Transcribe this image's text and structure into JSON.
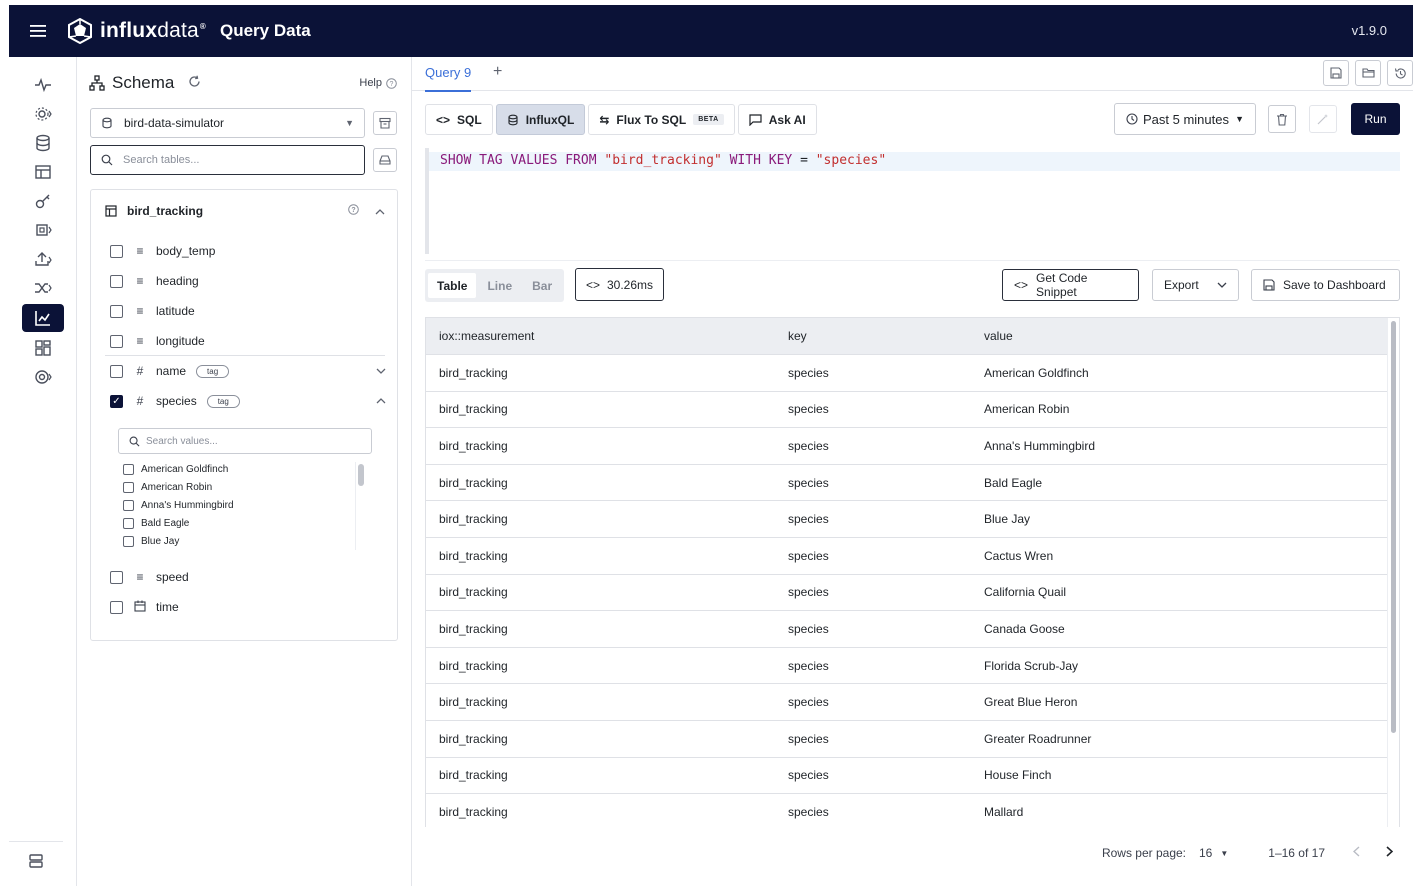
{
  "header": {
    "brand_bold": "influx",
    "brand_light": "data",
    "brand_sup": "®",
    "app_title": "Query Data",
    "version": "v1.9.0"
  },
  "schema": {
    "title": "Schema",
    "help": "Help",
    "database": "bird-data-simulator",
    "search_placeholder": "Search tables...",
    "table_name": "bird_tracking",
    "fields": [
      {
        "name": "body_temp",
        "icon": "field-icon"
      },
      {
        "name": "heading",
        "icon": "field-icon"
      },
      {
        "name": "latitude",
        "icon": "field-icon"
      },
      {
        "name": "longitude",
        "icon": "field-icon"
      },
      {
        "name": "name",
        "icon": "hash-icon",
        "tag": "tag"
      },
      {
        "name": "species",
        "icon": "hash-icon",
        "tag": "tag"
      },
      {
        "name": "speed",
        "icon": "field-icon"
      },
      {
        "name": "time",
        "icon": "calendar-icon"
      }
    ],
    "value_search_placeholder": "Search values...",
    "values": [
      "American Goldfinch",
      "American Robin",
      "Anna's Hummingbird",
      "Bald Eagle",
      "Blue Jay"
    ]
  },
  "tabs": {
    "active": "Query 9",
    "add": "+"
  },
  "languages": {
    "sql": "SQL",
    "influxql": "InfluxQL",
    "flux_to_sql": "Flux To SQL",
    "beta": "BETA",
    "ask_ai": "Ask AI"
  },
  "controls": {
    "time_range": "Past 5 minutes",
    "run": "Run"
  },
  "editor": {
    "kw1": "SHOW TAG VALUES FROM ",
    "str1": "\"bird_tracking\"",
    "kw2": " WITH KEY ",
    "op": "=",
    "str2": " \"species\""
  },
  "results_bar": {
    "views": [
      "Table",
      "Line",
      "Bar"
    ],
    "active_view": "Table",
    "timing": "30.26ms",
    "get_code": "Get Code Snippet",
    "export": "Export",
    "save_dashboard": "Save to Dashboard"
  },
  "table": {
    "columns": [
      "iox::measurement",
      "key",
      "value"
    ],
    "rows": [
      [
        "bird_tracking",
        "species",
        "American Goldfinch"
      ],
      [
        "bird_tracking",
        "species",
        "American Robin"
      ],
      [
        "bird_tracking",
        "species",
        "Anna's Hummingbird"
      ],
      [
        "bird_tracking",
        "species",
        "Bald Eagle"
      ],
      [
        "bird_tracking",
        "species",
        "Blue Jay"
      ],
      [
        "bird_tracking",
        "species",
        "Cactus Wren"
      ],
      [
        "bird_tracking",
        "species",
        "California Quail"
      ],
      [
        "bird_tracking",
        "species",
        "Canada Goose"
      ],
      [
        "bird_tracking",
        "species",
        "Florida Scrub-Jay"
      ],
      [
        "bird_tracking",
        "species",
        "Great Blue Heron"
      ],
      [
        "bird_tracking",
        "species",
        "Greater Roadrunner"
      ],
      [
        "bird_tracking",
        "species",
        "House Finch"
      ],
      [
        "bird_tracking",
        "species",
        "Mallard"
      ]
    ]
  },
  "pager": {
    "rows_per_page_label": "Rows per page:",
    "rows_per_page": "16",
    "range": "1–16 of 17"
  },
  "colors": {
    "header_bg": "#0b1237",
    "accent": "#3b6fd8",
    "string": "#c22f2f",
    "keyword": "#8a1a7a"
  }
}
